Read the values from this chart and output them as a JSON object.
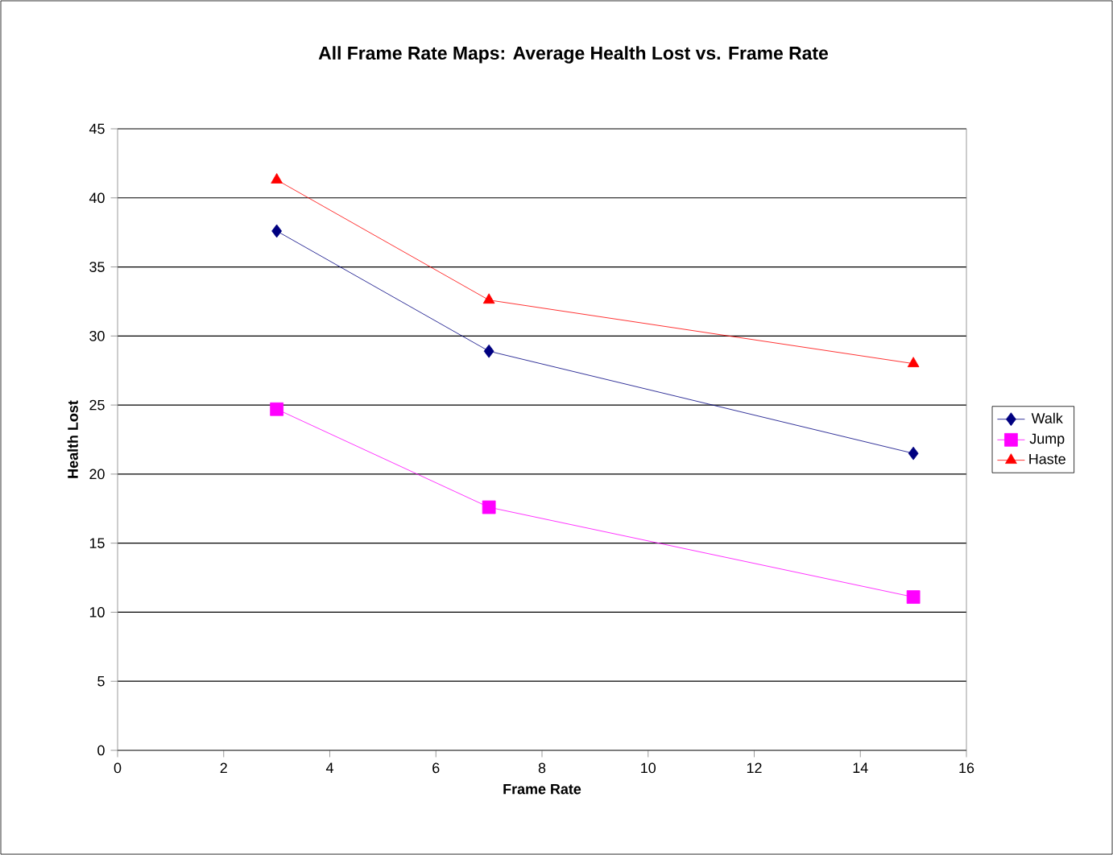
{
  "chart_data": {
    "type": "line",
    "title": "All Frame Rate Maps: Average Health Lost vs. Frame Rate",
    "xlabel": "Frame Rate",
    "ylabel": "Health Lost",
    "x": [
      3,
      7,
      15
    ],
    "series": [
      {
        "name": "Walk",
        "color": "#000080",
        "marker": "diamond",
        "values": [
          37.6,
          28.9,
          21.5
        ]
      },
      {
        "name": "Jump",
        "color": "#ff00ff",
        "marker": "square",
        "values": [
          24.7,
          17.6,
          11.1
        ]
      },
      {
        "name": "Haste",
        "color": "#ff0000",
        "marker": "triangle",
        "values": [
          41.3,
          32.6,
          28.0
        ]
      }
    ],
    "xlim": [
      0,
      16
    ],
    "xticks": [
      0,
      2,
      4,
      6,
      8,
      10,
      12,
      14,
      16
    ],
    "ylim": [
      0,
      45
    ],
    "yticks": [
      0,
      5,
      10,
      15,
      20,
      25,
      30,
      35,
      40,
      45
    ],
    "grid": "y",
    "legend": "right",
    "line_style": "solid"
  }
}
